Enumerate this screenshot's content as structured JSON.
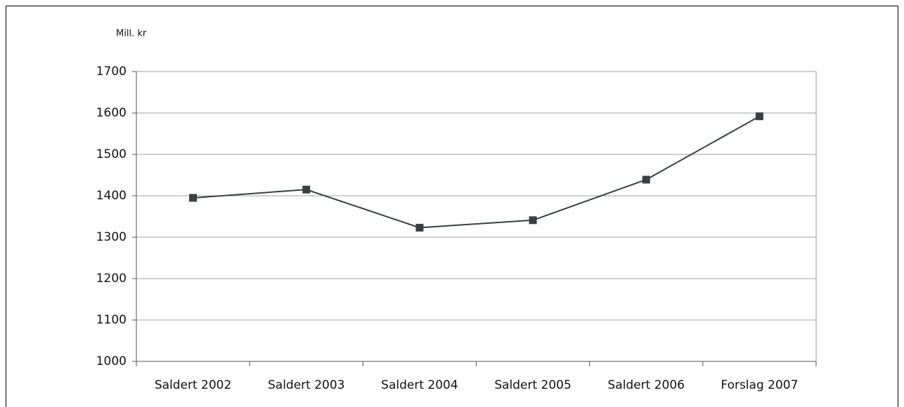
{
  "chart_data": {
    "type": "line",
    "y_label": "Mill. kr",
    "categories": [
      "Saldert 2002",
      "Saldert 2003",
      "Saldert 2004",
      "Saldert 2005",
      "Saldert 2006",
      "Forslag 2007"
    ],
    "series": [
      {
        "name": "Mill. kr",
        "color": "#3a3f44",
        "values": [
          1395,
          1415,
          1323,
          1341,
          1439,
          1592
        ]
      }
    ],
    "ylim": [
      1000,
      1700
    ],
    "yticks": [
      1000,
      1100,
      1200,
      1300,
      1400,
      1500,
      1600,
      1700
    ],
    "grid": true
  }
}
